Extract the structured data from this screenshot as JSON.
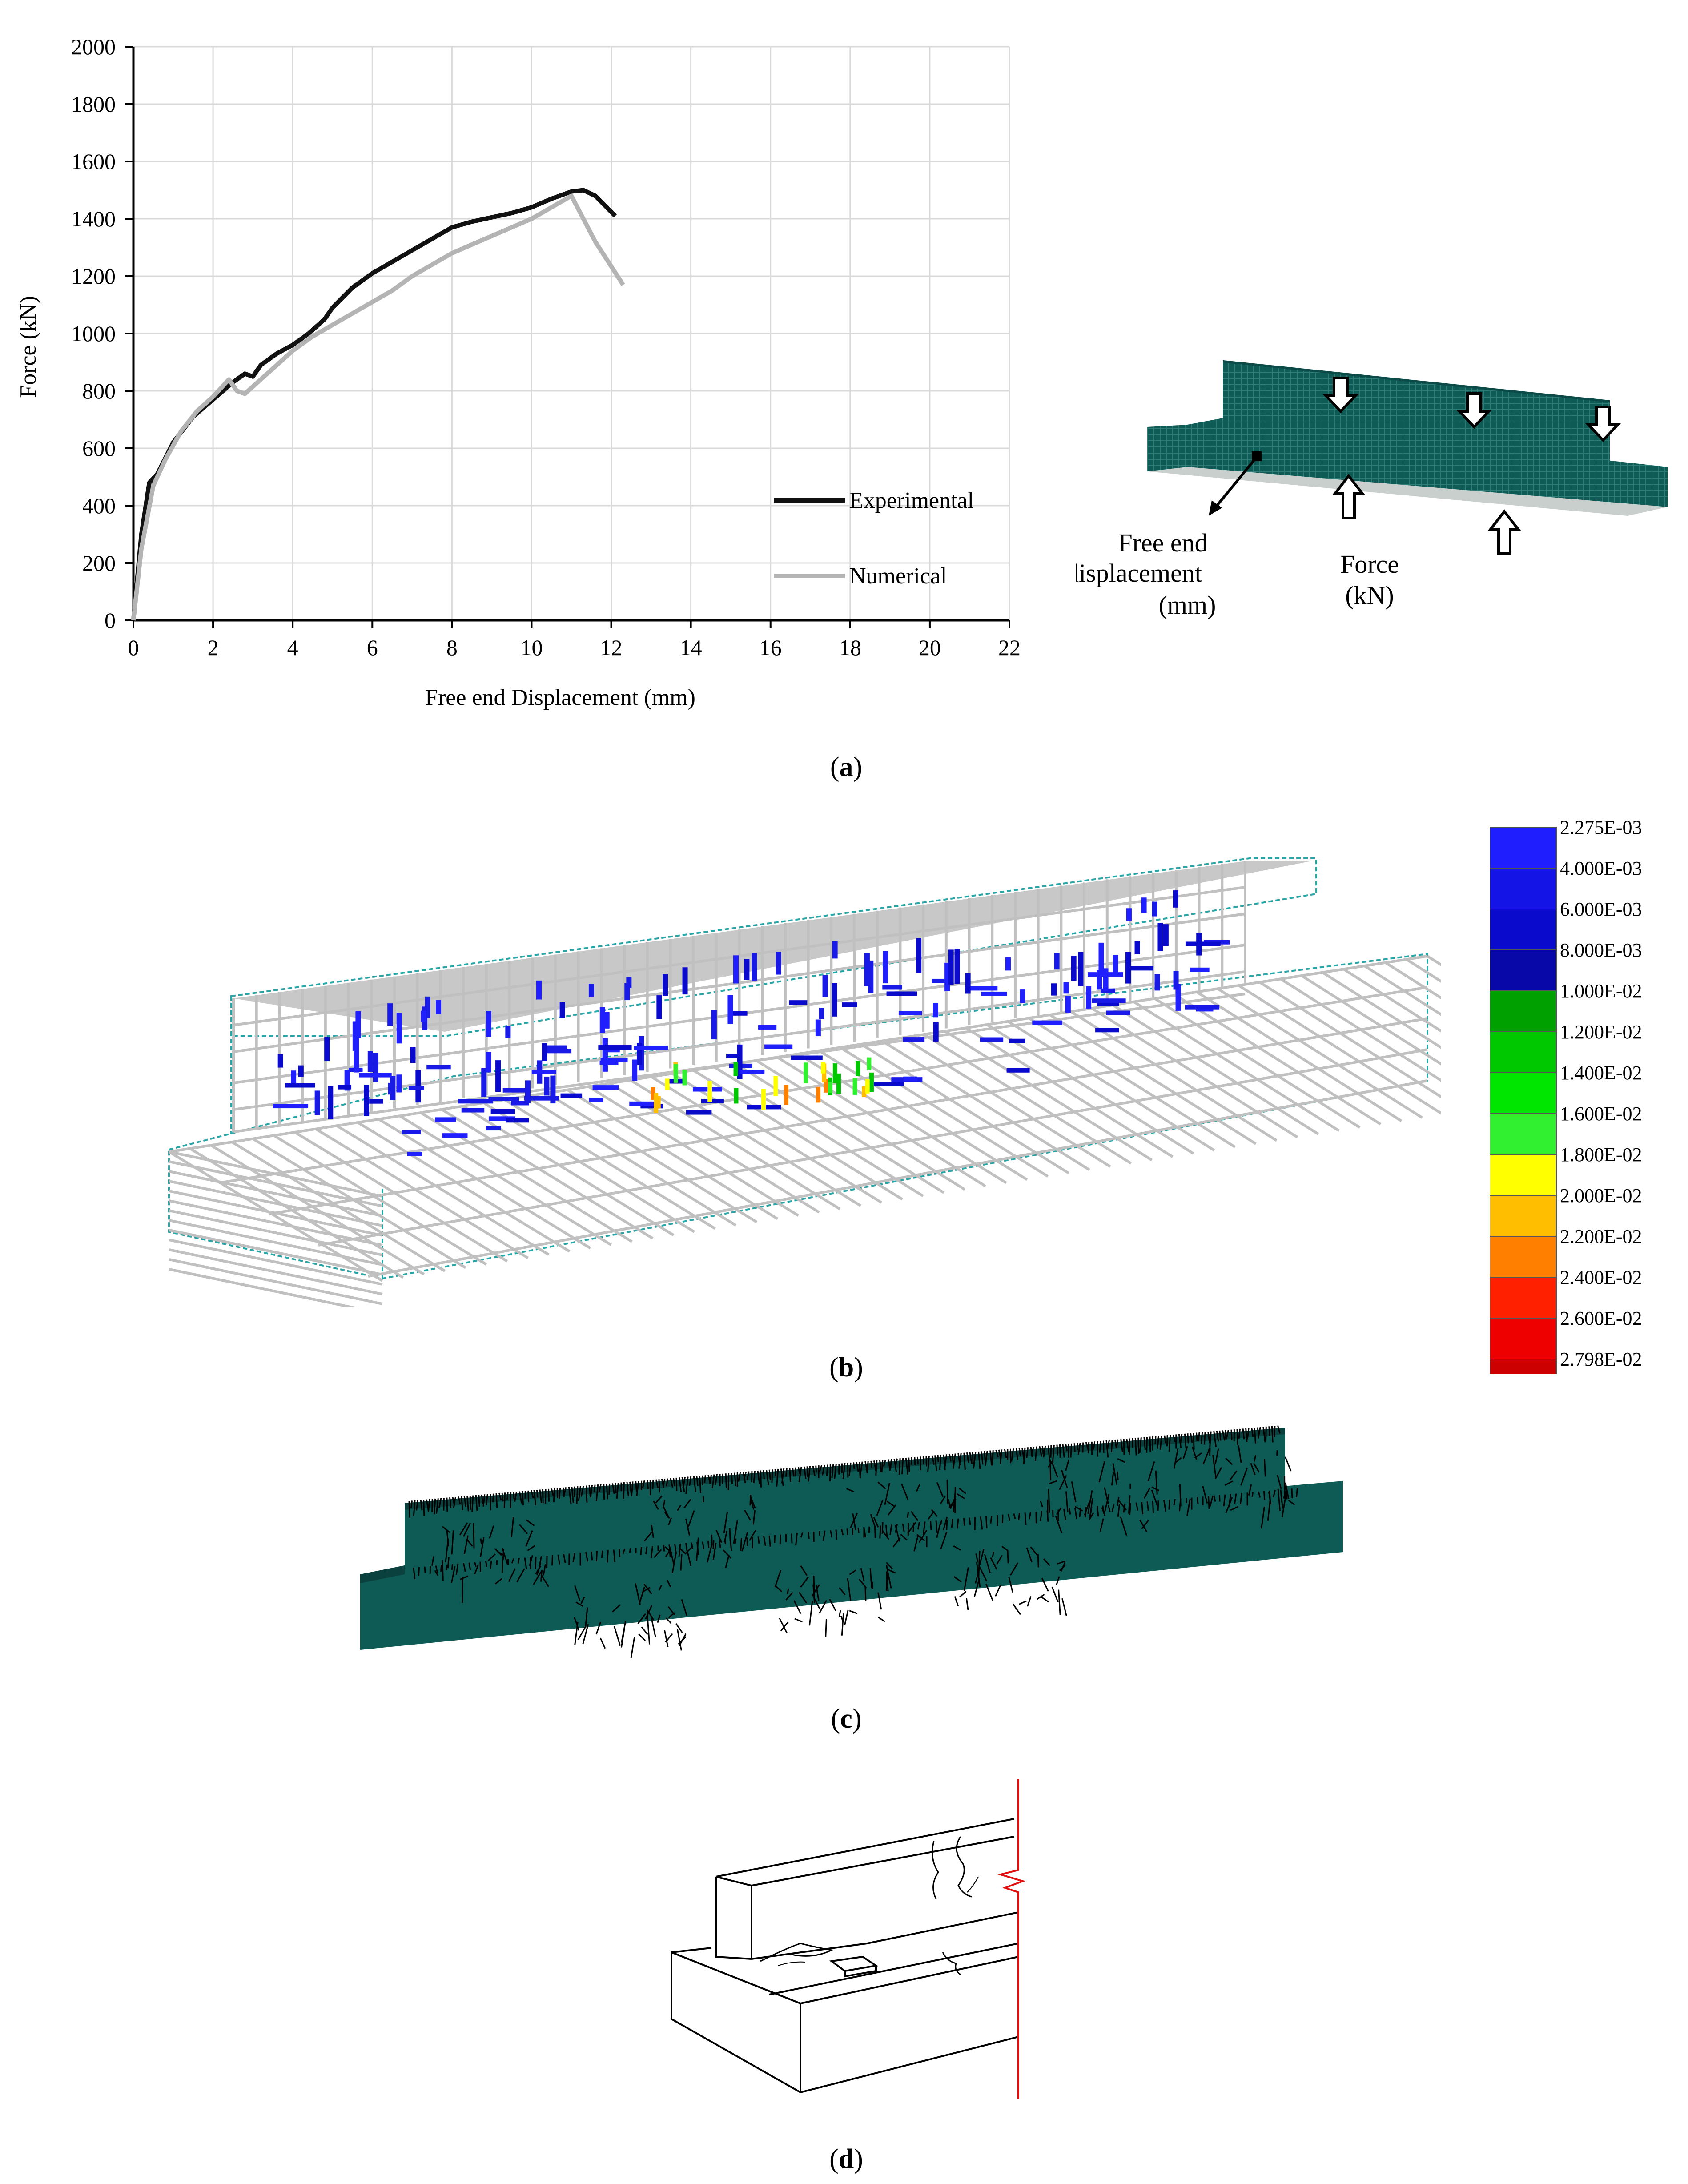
{
  "panels": {
    "a": {
      "caption_open": "(",
      "caption_letter": "a",
      "caption_close": ")"
    },
    "b": {
      "caption_open": "(",
      "caption_letter": "b",
      "caption_close": ")"
    },
    "c": {
      "caption_open": "(",
      "caption_letter": "c",
      "caption_close": ")"
    },
    "d": {
      "caption_open": "(",
      "caption_letter": "d",
      "caption_close": ")"
    }
  },
  "chart_data": {
    "type": "line",
    "title": "",
    "xlabel": "Free end Displacement (mm)",
    "ylabel": "Force (kN)",
    "xlim": [
      0,
      22
    ],
    "ylim": [
      0,
      2000
    ],
    "xticks": [
      0,
      2,
      4,
      6,
      8,
      10,
      12,
      14,
      16,
      18,
      20,
      22
    ],
    "yticks": [
      0,
      200,
      400,
      600,
      800,
      1000,
      1200,
      1400,
      1600,
      1800,
      2000
    ],
    "grid": true,
    "legend_position": "bottom-right",
    "series": [
      {
        "name": "Experimental",
        "color": "#111111",
        "points": [
          [
            0,
            0
          ],
          [
            0.2,
            300
          ],
          [
            0.4,
            480
          ],
          [
            0.6,
            510
          ],
          [
            1.0,
            620
          ],
          [
            1.5,
            710
          ],
          [
            2.0,
            770
          ],
          [
            2.5,
            830
          ],
          [
            2.8,
            860
          ],
          [
            3.0,
            850
          ],
          [
            3.2,
            890
          ],
          [
            3.6,
            930
          ],
          [
            4.0,
            960
          ],
          [
            4.4,
            1000
          ],
          [
            4.8,
            1050
          ],
          [
            5.0,
            1090
          ],
          [
            5.5,
            1160
          ],
          [
            6.0,
            1210
          ],
          [
            6.5,
            1250
          ],
          [
            7.0,
            1290
          ],
          [
            7.5,
            1330
          ],
          [
            8.0,
            1370
          ],
          [
            8.5,
            1390
          ],
          [
            9.0,
            1405
          ],
          [
            9.5,
            1420
          ],
          [
            10.0,
            1440
          ],
          [
            10.5,
            1470
          ],
          [
            11.0,
            1495
          ],
          [
            11.3,
            1500
          ],
          [
            11.6,
            1480
          ],
          [
            12.1,
            1410
          ]
        ]
      },
      {
        "name": "Numerical",
        "color": "#b4b4b4",
        "points": [
          [
            0,
            0
          ],
          [
            0.2,
            250
          ],
          [
            0.5,
            470
          ],
          [
            0.8,
            560
          ],
          [
            1.2,
            660
          ],
          [
            1.6,
            730
          ],
          [
            2.0,
            780
          ],
          [
            2.4,
            840
          ],
          [
            2.6,
            800
          ],
          [
            2.8,
            790
          ],
          [
            3.2,
            840
          ],
          [
            3.6,
            890
          ],
          [
            4.0,
            940
          ],
          [
            4.5,
            990
          ],
          [
            5.0,
            1030
          ],
          [
            5.5,
            1070
          ],
          [
            6.0,
            1110
          ],
          [
            6.5,
            1150
          ],
          [
            7.0,
            1200
          ],
          [
            7.5,
            1240
          ],
          [
            8.0,
            1280
          ],
          [
            8.5,
            1310
          ],
          [
            9.0,
            1340
          ],
          [
            9.5,
            1370
          ],
          [
            10.0,
            1400
          ],
          [
            10.5,
            1440
          ],
          [
            11.0,
            1480
          ],
          [
            11.6,
            1320
          ],
          [
            12.3,
            1170
          ]
        ]
      }
    ]
  },
  "schematic": {
    "label_displacement_1": "Free end",
    "label_displacement_2": "displacement",
    "label_displacement_3": "(mm)",
    "label_force_1": "Force",
    "label_force_2": "(kN)"
  },
  "color_legend": {
    "colors": [
      "#1e1eff",
      "#1414e6",
      "#0a0acc",
      "#0808a8",
      "#00a000",
      "#00c800",
      "#00e600",
      "#30f030",
      "#ffff00",
      "#ffbf00",
      "#ff8000",
      "#ff2000",
      "#ee0000",
      "#cc0000"
    ],
    "labels": [
      "2.275E-03",
      "4.000E-03",
      "6.000E-03",
      "8.000E-03",
      "1.000E-02",
      "1.200E-02",
      "1.400E-02",
      "1.600E-02",
      "1.800E-02",
      "2.000E-02",
      "2.200E-02",
      "2.400E-02",
      "2.600E-02",
      "2.798E-02"
    ]
  },
  "colors": {
    "model_teal": "#0e5a55",
    "crack_blue": "#1a1ae6",
    "mesh_gray": "#c0c0c0",
    "boundary_teal": "#2aa5a5",
    "cut_line_red": "#e01010"
  }
}
